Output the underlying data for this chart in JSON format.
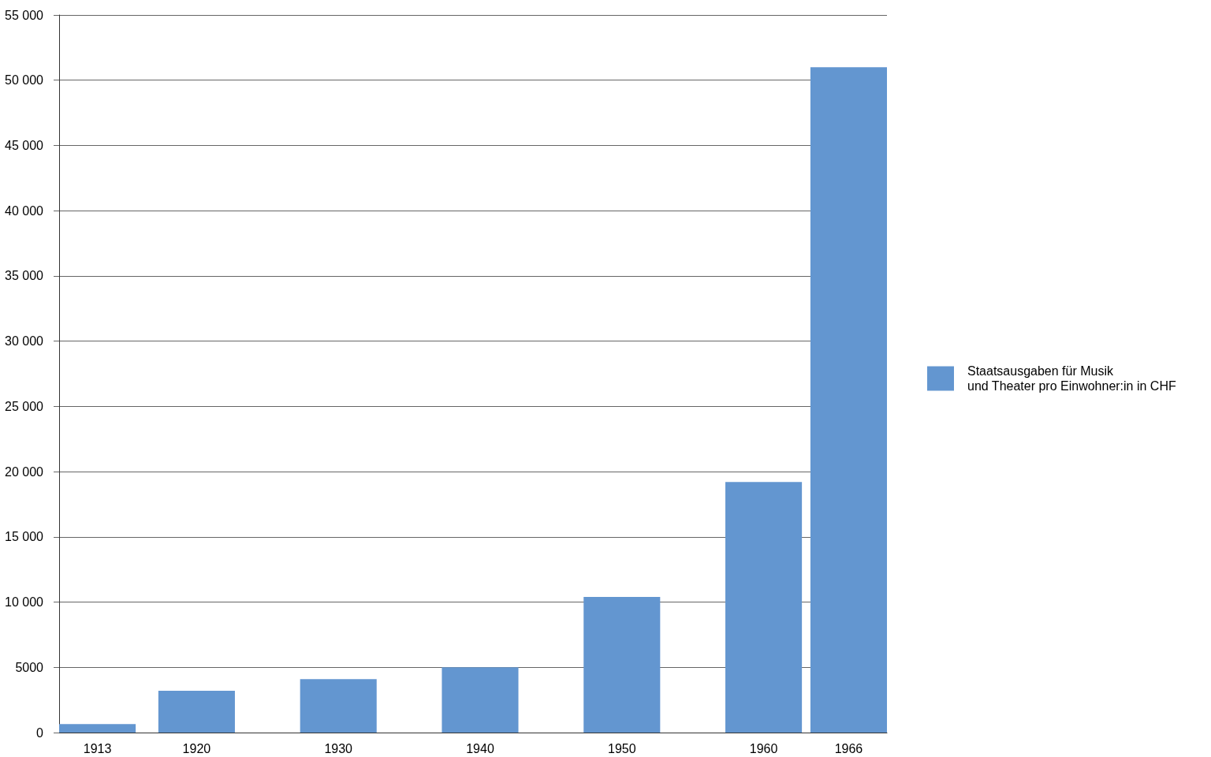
{
  "chart_data": {
    "type": "bar",
    "x": [
      1913,
      1920,
      1930,
      1940,
      1950,
      1960,
      1966
    ],
    "series": [
      {
        "name": "Staatsausgaben für Musik\nund Theater pro Einwohner:in in CHF",
        "color": "#6396d0",
        "values": [
          650,
          3200,
          4100,
          5000,
          10400,
          19200,
          51000
        ]
      }
    ],
    "xlim": [
      1910.3,
      1968.7
    ],
    "xticks": [
      1913,
      1920,
      1930,
      1940,
      1950,
      1960,
      1966
    ],
    "ylim": [
      0,
      55000
    ],
    "yticks": [
      0,
      5000,
      {
        "value": 10000,
        "label": "10 000"
      },
      {
        "value": 15000,
        "label": "15 000"
      },
      {
        "value": 20000,
        "label": "20 000"
      },
      {
        "value": 25000,
        "label": "25 000"
      },
      {
        "value": 30000,
        "label": "30 000"
      },
      {
        "value": 35000,
        "label": "35 000"
      },
      {
        "value": 40000,
        "label": "40 000"
      },
      {
        "value": 45000,
        "label": "45 000"
      },
      {
        "value": 50000,
        "label": "50 000"
      },
      {
        "value": 55000,
        "label": "55 000"
      }
    ],
    "grid": "y",
    "legend": "right"
  }
}
